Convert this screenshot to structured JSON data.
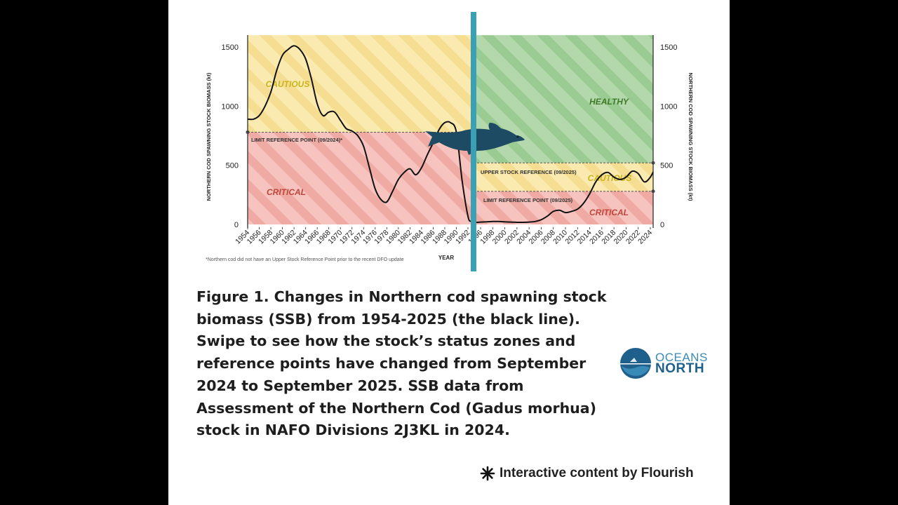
{
  "chart_data": {
    "type": "line",
    "title": "",
    "xlabel": "YEAR",
    "ylabel": "NORTHERN COD SPAWNING STOCK BIOMASS (kt)",
    "ylabel_right": "NORTHERN COD SPAWNING STOCK BIOMASS (kt)",
    "xlim": [
      1954,
      2025
    ],
    "ylim": [
      0,
      1600
    ],
    "y_ticks": [
      "0",
      "500",
      "1000",
      "1500"
    ],
    "x_tick_labels": [
      "1954",
      "1956",
      "1958",
      "1960",
      "1962",
      "1964",
      "1966",
      "1968",
      "1970",
      "1972",
      "1974",
      "1976",
      "1978",
      "1980",
      "1982",
      "1984",
      "1986",
      "1988",
      "1990",
      "1992",
      "1996",
      "1998",
      "2000",
      "2002",
      "2004",
      "2006",
      "2008",
      "2010",
      "2012",
      "2014",
      "2016",
      "2018",
      "2020",
      "2022",
      "2024"
    ],
    "series": [
      {
        "x": [
          1954,
          1955,
          1956,
          1957,
          1958,
          1959,
          1960,
          1961,
          1962,
          1963,
          1964,
          1965,
          1966,
          1967,
          1968,
          1969,
          1970,
          1971,
          1972,
          1973,
          1974,
          1975,
          1976,
          1977,
          1978,
          1979,
          1980,
          1981,
          1982,
          1983,
          1984,
          1985,
          1986,
          1987,
          1988,
          1989,
          1990,
          1991,
          1992,
          1993,
          1994,
          1995,
          1996,
          1997,
          1998,
          1999,
          2000,
          2001,
          2002,
          2003,
          2004,
          2005,
          2006,
          2007,
          2008,
          2009,
          2010,
          2011,
          2012,
          2013,
          2014,
          2015,
          2016,
          2017,
          2018,
          2019,
          2020,
          2021,
          2022,
          2023,
          2024,
          2025
        ],
        "values": [
          890,
          890,
          920,
          1000,
          1120,
          1300,
          1430,
          1480,
          1510,
          1480,
          1400,
          1230,
          1020,
          920,
          950,
          950,
          880,
          810,
          790,
          750,
          660,
          480,
          300,
          210,
          190,
          280,
          380,
          440,
          470,
          420,
          480,
          590,
          690,
          800,
          860,
          860,
          780,
          370,
          70,
          25,
          18,
          18,
          20,
          22,
          25,
          25,
          22,
          20,
          18,
          18,
          20,
          25,
          40,
          70,
          110,
          120,
          100,
          110,
          130,
          180,
          260,
          360,
          420,
          440,
          400,
          380,
          400,
          450,
          430,
          360,
          400,
          500
        ],
        "color": "#111111"
      }
    ],
    "era_2024": {
      "zones": [
        "CAUTIOUS",
        "CRITICAL"
      ],
      "limit_reference_point": 780,
      "limit_label": "LIMIT REFERENCE POINT (09/2024)*"
    },
    "era_2025": {
      "zones": [
        "HEALTHY",
        "CAUTIOUS",
        "CRITICAL"
      ],
      "upper_stock_reference": 520,
      "upper_label": "UPPER STOCK REFERENCE (09/2025)",
      "limit_reference_point": 280,
      "limit_label": "LIMIT REFERENCE POINT (09/2025)"
    },
    "footnote": "*Northern cod did not have an Upper Stock Reference Point prior to the recent DFO update",
    "colors": {
      "cautious": "#f8e6a6",
      "critical": "#f4b6b1",
      "healthy": "#a8d3a2",
      "cautious_text": "#c9b419",
      "critical_text": "#c0453a",
      "healthy_text": "#3f7a26",
      "divider": "#3aa1b5",
      "fish": "#1d4b63"
    }
  },
  "caption": "Figure 1. Changes in Northern cod spawning stock biomass (SSB) from 1954-2025 (the black line). Swipe to see how the stock’s status zones and reference points have changed from September 2024 to September 2025. SSB data from Assessment of the Northern Cod (Gadus morhua) stock in NAFO Divisions 2J3KL in 2024.",
  "logo": {
    "line1": "OCEANS",
    "line2": "NORTH"
  },
  "flourish": {
    "label": "Interactive content by Flourish",
    "icon": "asterisk-icon"
  }
}
